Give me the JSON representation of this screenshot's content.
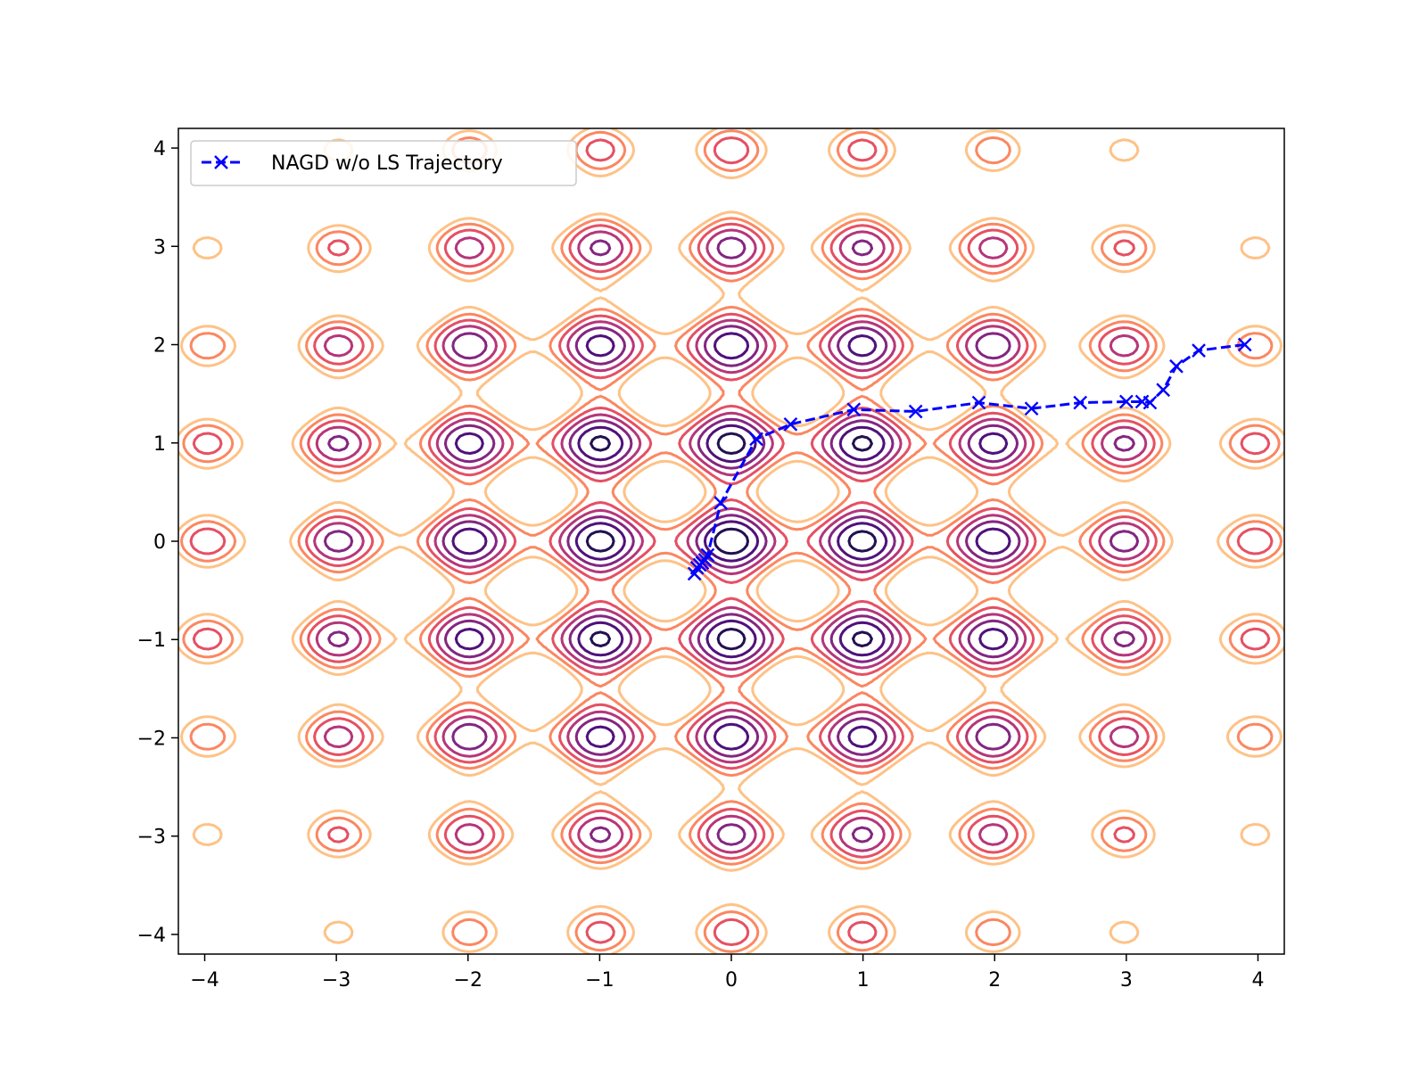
{
  "chart_data": {
    "type": "line",
    "title": "",
    "xlabel": "",
    "ylabel": "",
    "xlim": [
      -4.2,
      4.2
    ],
    "ylim": [
      -4.2,
      4.2
    ],
    "x_ticks": [
      {
        "value": -4,
        "label": "−4"
      },
      {
        "value": -3,
        "label": "−3"
      },
      {
        "value": -2,
        "label": "−2"
      },
      {
        "value": -1,
        "label": "−1"
      },
      {
        "value": 0,
        "label": "0"
      },
      {
        "value": 1,
        "label": "1"
      },
      {
        "value": 2,
        "label": "2"
      },
      {
        "value": 3,
        "label": "3"
      },
      {
        "value": 4,
        "label": "4"
      }
    ],
    "y_ticks": [
      {
        "value": -4,
        "label": "−4"
      },
      {
        "value": -3,
        "label": "−3"
      },
      {
        "value": -2,
        "label": "−2"
      },
      {
        "value": -1,
        "label": "−1"
      },
      {
        "value": 0,
        "label": "0"
      },
      {
        "value": 1,
        "label": "1"
      },
      {
        "value": 2,
        "label": "2"
      },
      {
        "value": 3,
        "label": "3"
      },
      {
        "value": 4,
        "label": "4"
      }
    ],
    "grid": false,
    "legend": {
      "placement": "top-left"
    },
    "colormap": "magma",
    "contour_levels": [
      {
        "value": 3,
        "color": "#221150"
      },
      {
        "value": 7,
        "color": "#4f117b"
      },
      {
        "value": 11,
        "color": "#832681"
      },
      {
        "value": 15,
        "color": "#b5367a"
      },
      {
        "value": 19,
        "color": "#e55063"
      },
      {
        "value": 23,
        "color": "#fb8761"
      },
      {
        "value": 27,
        "color": "#fec287"
      }
    ],
    "series": [
      {
        "name": "NAGD w/o LS Trajectory",
        "color": "#0000ff",
        "line_style": "dashed",
        "marker": "x",
        "x": [
          3.9,
          3.55,
          3.38,
          3.28,
          3.18,
          3.12,
          3.0,
          2.65,
          2.28,
          1.88,
          1.4,
          0.93,
          0.45,
          0.19,
          -0.08,
          -0.18,
          -0.2,
          -0.22,
          -0.24,
          -0.26,
          -0.28
        ],
        "y": [
          2.0,
          1.94,
          1.78,
          1.54,
          1.41,
          1.42,
          1.42,
          1.41,
          1.35,
          1.41,
          1.32,
          1.34,
          1.19,
          1.04,
          0.39,
          -0.14,
          -0.19,
          -0.22,
          -0.24,
          -0.27,
          -0.33
        ]
      }
    ]
  }
}
